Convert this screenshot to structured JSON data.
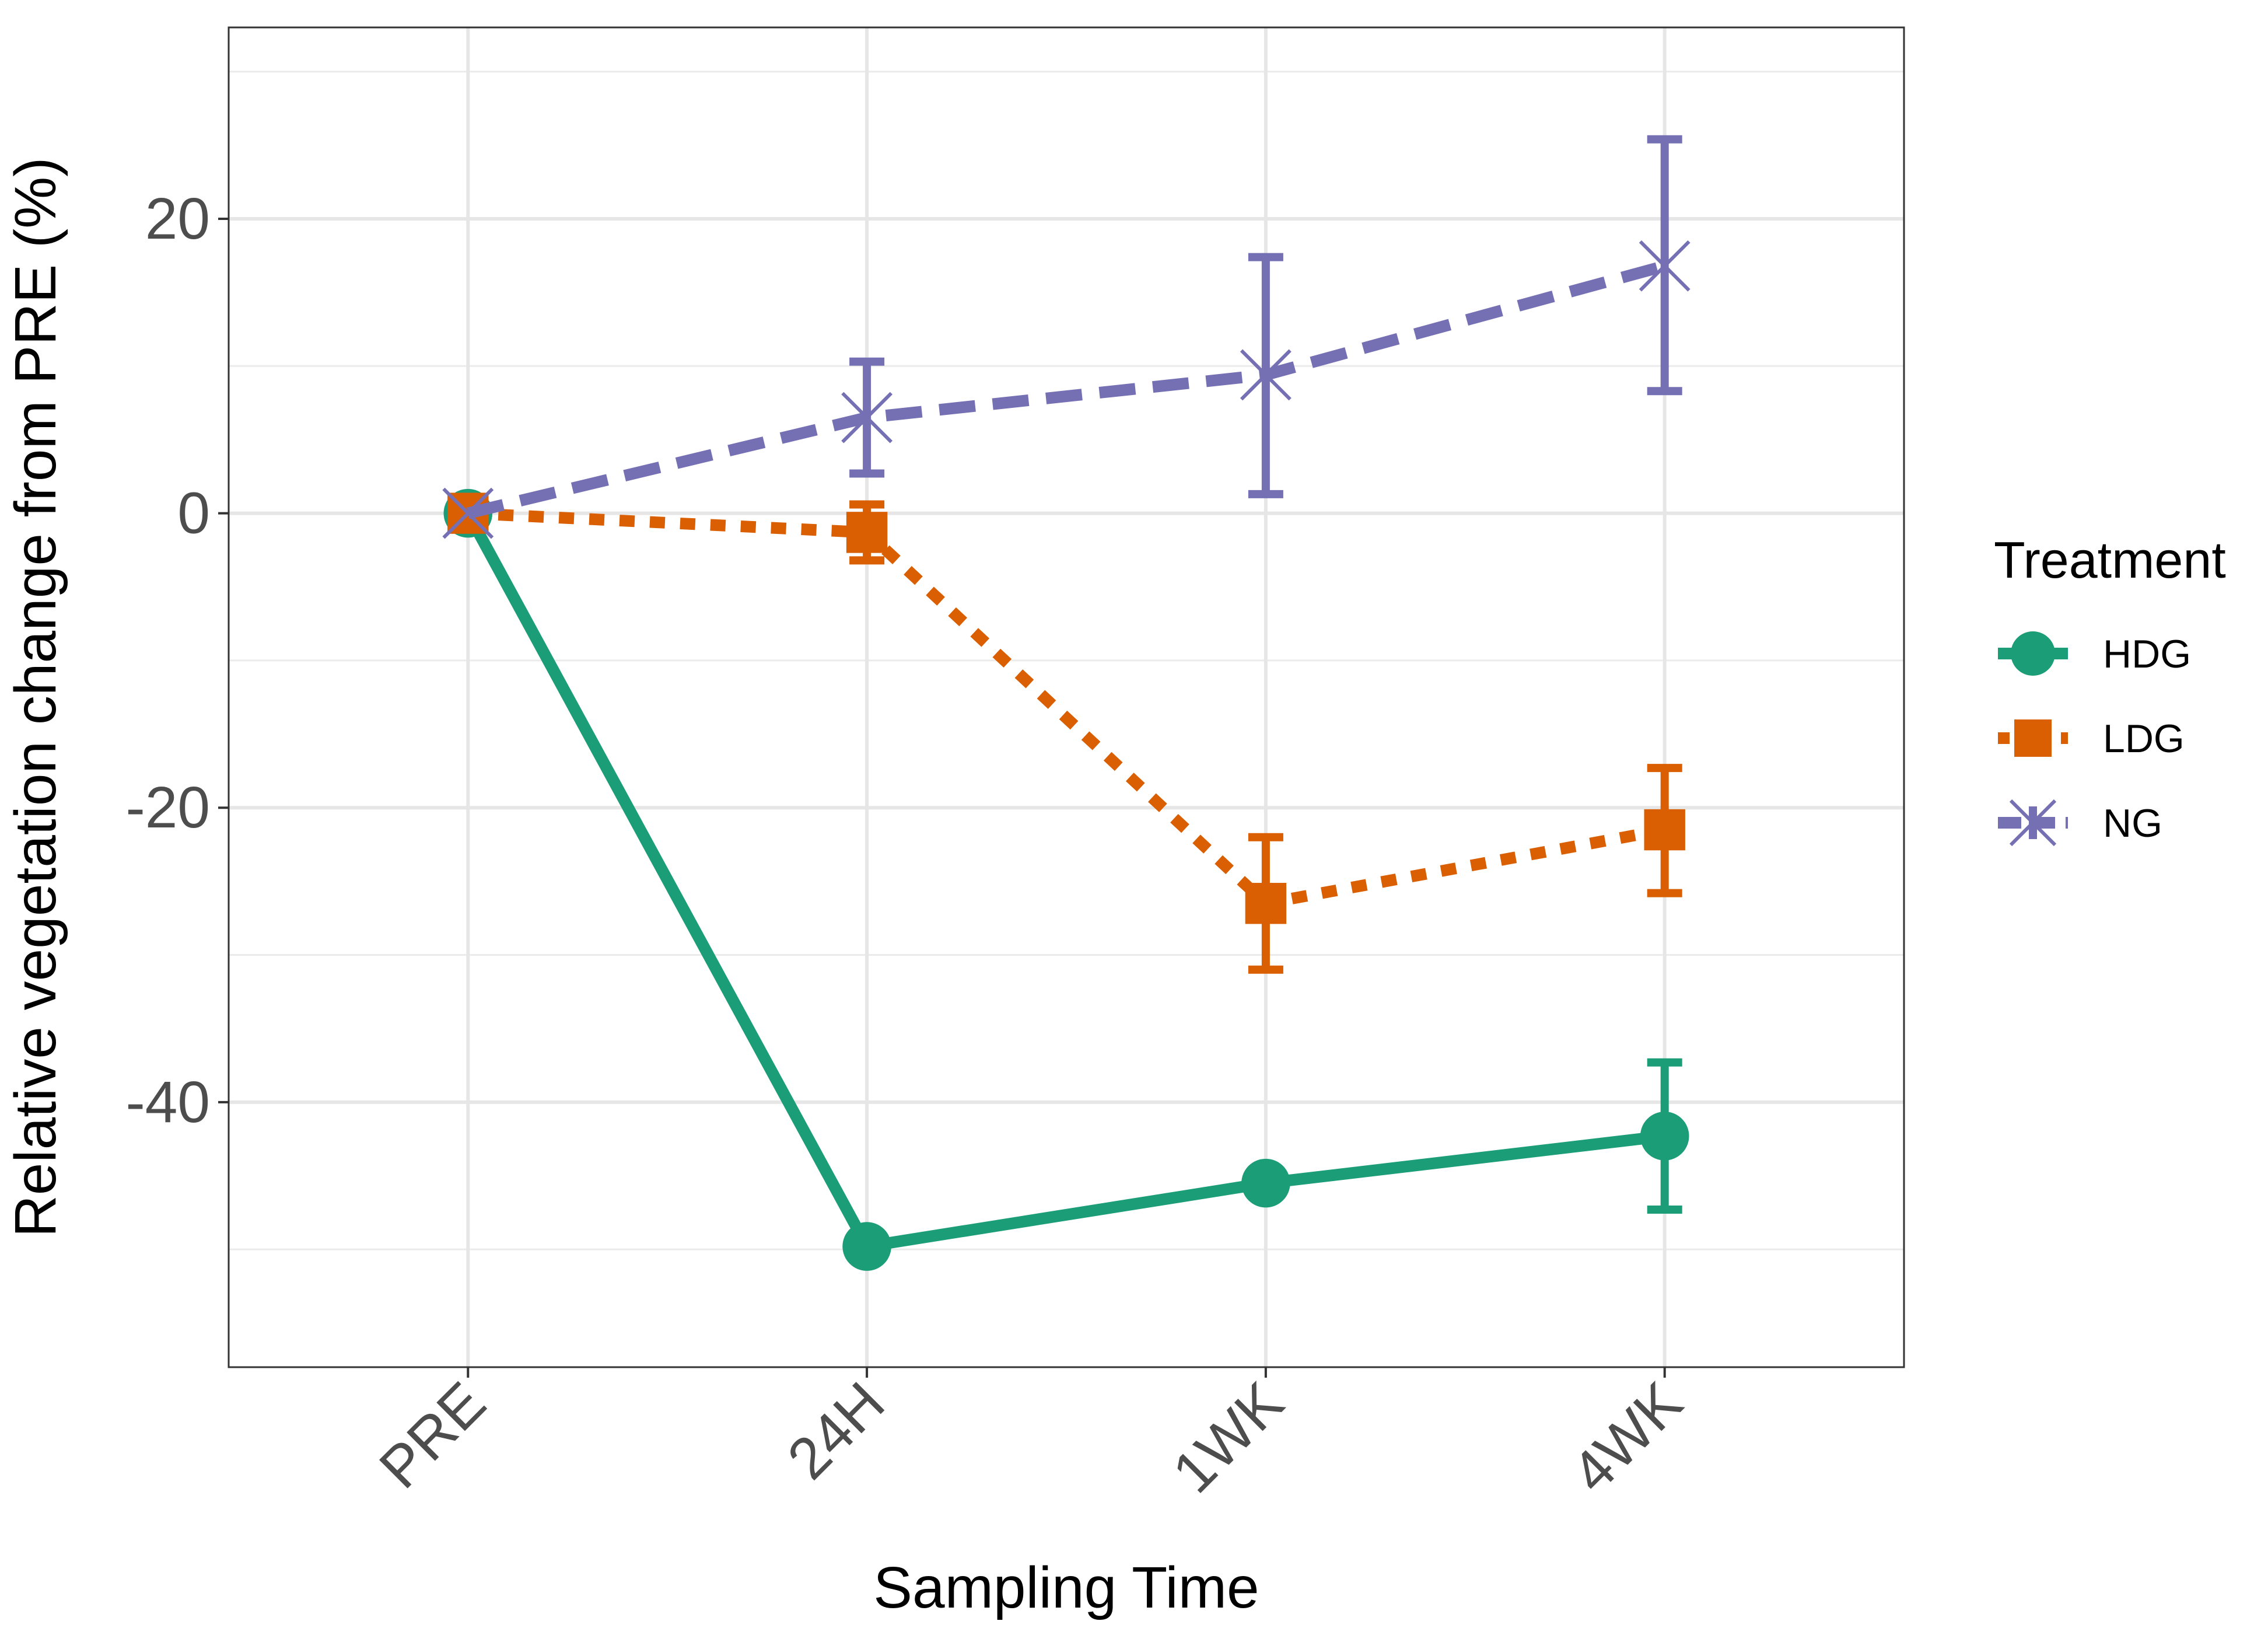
{
  "chart_data": {
    "type": "line",
    "xlabel": "Sampling Time",
    "ylabel": "Relative vegetation change from PRE (%)",
    "categories": [
      "PRE",
      "24H",
      "1WK",
      "4WK"
    ],
    "ylim": [
      -58,
      33
    ],
    "y_ticks": [
      -40,
      -20,
      0,
      20
    ],
    "y_tick_labels": [
      "-40",
      "-20",
      "0",
      "20"
    ],
    "grid": true,
    "legend": {
      "title": "Treatment",
      "position": "right"
    },
    "series": [
      {
        "name": "HDG",
        "color": "#1b9e77",
        "marker": "circle",
        "line": "solid",
        "values": [
          0,
          -49.8,
          -45.5,
          -42.3
        ],
        "error_low": [
          0,
          -49.8,
          -45.5,
          -47.3
        ],
        "error_high": [
          0,
          -49.8,
          -45.5,
          -37.3
        ]
      },
      {
        "name": "LDG",
        "color": "#d95f02",
        "marker": "square",
        "line": "dotted",
        "values": [
          0,
          -1.3,
          -26.5,
          -21.5
        ],
        "error_low": [
          0,
          -3.2,
          -31.0,
          -25.8
        ],
        "error_high": [
          0,
          0.6,
          -22.0,
          -17.3
        ]
      },
      {
        "name": "NG",
        "color": "#7570b3",
        "marker": "x",
        "line": "dashed",
        "values": [
          0,
          6.5,
          9.4,
          16.8
        ],
        "error_low": [
          0,
          2.7,
          1.3,
          8.3
        ],
        "error_high": [
          0,
          10.3,
          17.4,
          25.4
        ]
      }
    ]
  }
}
